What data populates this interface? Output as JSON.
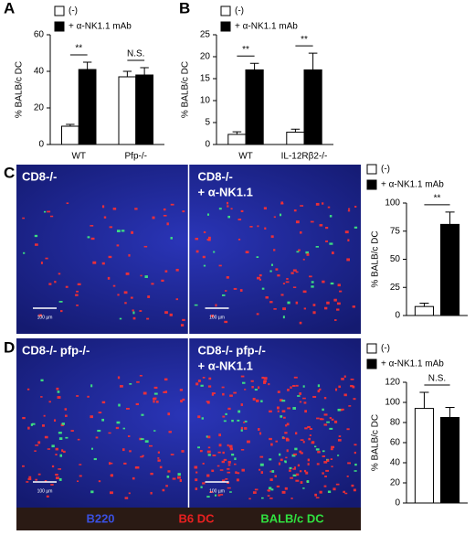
{
  "chart_data": [
    {
      "type": "bar",
      "panel": "A",
      "y_label": "% BALB/c DC",
      "categories": [
        "WT",
        "Pfp-/-"
      ],
      "series": [
        {
          "name": "(-)",
          "color": "#ffffff",
          "values": [
            10,
            37
          ],
          "errors": [
            1,
            3
          ]
        },
        {
          "name": "+ α-NK1.1 mAb",
          "color": "#000000",
          "values": [
            41,
            38
          ],
          "errors": [
            4,
            4
          ]
        }
      ],
      "annotations": [
        "**",
        "N.S."
      ],
      "ylim": [
        0,
        60
      ],
      "yticks": [
        0,
        20,
        40,
        60
      ]
    },
    {
      "type": "bar",
      "panel": "B",
      "y_label": "% BALB/c DC",
      "categories": [
        "WT",
        "IL-12Rβ2-/-"
      ],
      "series": [
        {
          "name": "(-)",
          "color": "#ffffff",
          "values": [
            2.3,
            2.8
          ],
          "errors": [
            0.6,
            0.7
          ]
        },
        {
          "name": "+ α-NK1.1 mAb",
          "color": "#000000",
          "values": [
            17,
            17
          ],
          "errors": [
            1.5,
            3.8
          ]
        }
      ],
      "annotations": [
        "**",
        "**"
      ],
      "ylim": [
        0,
        25
      ],
      "yticks": [
        0,
        5,
        10,
        15,
        20,
        25
      ]
    },
    {
      "type": "bar",
      "panel": "C",
      "y_label": "% BALB/c DC",
      "categories": [
        null
      ],
      "series": [
        {
          "name": "(-)",
          "color": "#ffffff",
          "values": [
            8
          ],
          "errors": [
            3
          ]
        },
        {
          "name": "+ α-NK1.1 mAb",
          "color": "#000000",
          "values": [
            81
          ],
          "errors": [
            11
          ]
        }
      ],
      "annotations": [
        "**"
      ],
      "ylim": [
        0,
        100
      ],
      "yticks": [
        0,
        25,
        50,
        75,
        100
      ]
    },
    {
      "type": "bar",
      "panel": "D",
      "y_label": "% BALB/c DC",
      "categories": [
        null
      ],
      "series": [
        {
          "name": "(-)",
          "color": "#ffffff",
          "values": [
            94
          ],
          "errors": [
            16
          ]
        },
        {
          "name": "+ α-NK1.1 mAb",
          "color": "#000000",
          "values": [
            85
          ],
          "errors": [
            10
          ]
        }
      ],
      "annotations": [
        "N.S."
      ],
      "ylim": [
        0,
        120
      ],
      "yticks": [
        0,
        20,
        40,
        60,
        80,
        100,
        120
      ]
    }
  ],
  "images": [
    {
      "left_label": "CD8-/-",
      "right_label": [
        "CD8-/-",
        "+ α-NK1.1"
      ],
      "scale_bars": [
        "100 µm",
        "100 µm"
      ]
    },
    {
      "left_label": "CD8-/- pfp-/-",
      "right_label": [
        "CD8-/- pfp-/-",
        "+ α-NK1.1"
      ],
      "scale_bars": [
        "100 µm",
        "100 µm"
      ]
    }
  ],
  "channel_legend": [
    {
      "label": "B220",
      "color": "#3a50e0"
    },
    {
      "label": "B6 DC",
      "color": "#e82020"
    },
    {
      "label": "BALB/c DC",
      "color": "#30e040"
    }
  ]
}
